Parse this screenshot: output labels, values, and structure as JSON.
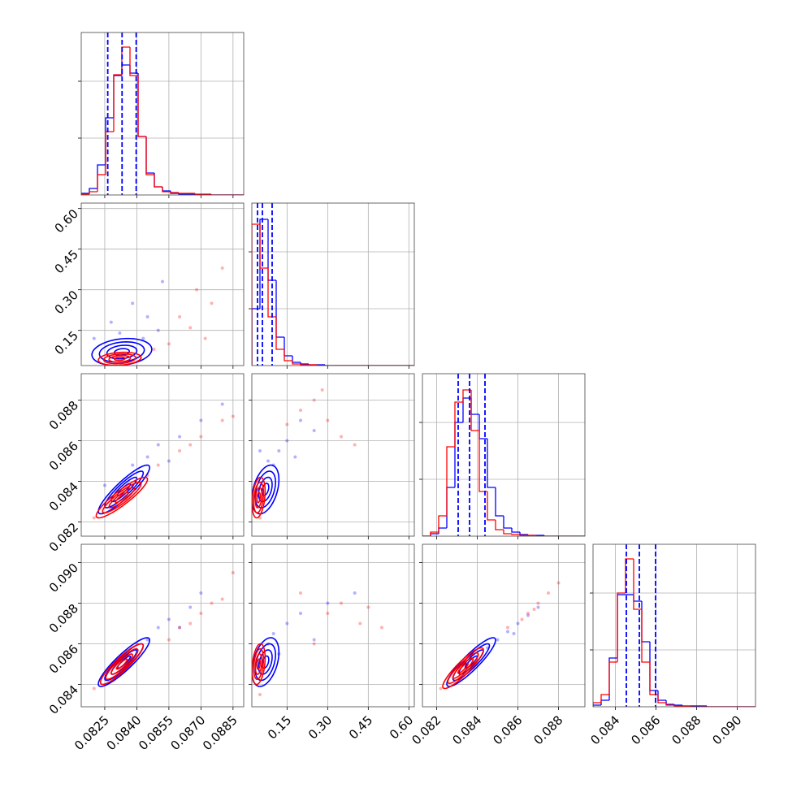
{
  "chart_data": {
    "type": "corner",
    "grid": true,
    "colors": [
      "#0000ff",
      "#ff0000"
    ],
    "contour_levels": [
      0.5,
      1,
      1.5,
      2
    ],
    "params": [
      {
        "lim": [
          0.0814,
          0.089
        ],
        "ticks": [
          0.0825,
          {
            "value": 0.084,
            "label": "0.0840"
          },
          0.0855,
          {
            "value": 0.087,
            "label": "0.0870"
          },
          0.0885
        ]
      },
      {
        "lim": [
          0.02,
          0.62
        ],
        "ticks": [
          0.15,
          {
            "value": 0.3,
            "label": "0.30"
          },
          0.45,
          {
            "value": 0.6,
            "label": "0.60"
          }
        ]
      },
      {
        "lim": [
          0.0813,
          0.0893
        ],
        "ticks": [
          0.082,
          0.084,
          0.086,
          0.088
        ]
      },
      {
        "lim": [
          0.0829,
          0.0909
        ],
        "ticks": [
          0.084,
          0.086,
          0.088,
          {
            "value": 0.09,
            "label": "0.090"
          }
        ]
      }
    ],
    "histograms": [
      {
        "bins": [
          0.0814,
          0.08178,
          0.08216,
          0.08254,
          0.08292,
          0.0833,
          0.08368,
          0.08406,
          0.08444,
          0.08482,
          0.0852,
          0.08558,
          0.08596,
          0.08634,
          0.08672,
          0.0871,
          0.08748,
          0.08786,
          0.08824,
          0.08862,
          0.089
        ],
        "counts": [
          [
            2,
            8,
            37,
            95,
            147,
            160,
            150,
            72,
            27,
            10,
            5,
            2,
            1,
            1,
            0,
            0,
            0,
            0,
            0,
            0
          ],
          [
            1,
            4,
            25,
            78,
            148,
            182,
            147,
            72,
            25,
            10,
            4,
            3,
            2,
            2,
            1,
            1,
            0,
            0,
            0,
            0
          ]
        ],
        "quantiles": [
          0.08264,
          0.08331,
          0.08397
        ],
        "ylim": [
          0,
          200
        ],
        "yticks": [
          70,
          140
        ]
      },
      {
        "bins": [
          0.02,
          0.05,
          0.08,
          0.11,
          0.14,
          0.17,
          0.2,
          0.23,
          0.26,
          0.29,
          0.32,
          0.35,
          0.38,
          0.41,
          0.44,
          0.47,
          0.5,
          0.53,
          0.56,
          0.59,
          0.62
        ],
        "counts": [
          [
            70,
            180,
            105,
            35,
            12,
            4,
            2,
            1,
            1,
            0,
            0,
            0,
            0,
            0,
            0,
            0,
            0,
            0,
            0,
            0
          ],
          [
            174,
            120,
            60,
            20,
            6,
            2,
            1,
            1,
            0,
            0,
            0,
            0,
            0,
            0,
            0,
            0,
            0,
            0,
            0,
            0
          ]
        ],
        "quantiles": [
          0.041,
          0.059,
          0.095
        ],
        "ylim": [
          0,
          200
        ],
        "yticks": [
          70,
          140
        ]
      },
      {
        "bins": [
          0.0813,
          0.0817,
          0.0821,
          0.0825,
          0.0829,
          0.0833,
          0.0837,
          0.0841,
          0.0845,
          0.0849,
          0.0853,
          0.0857,
          0.0861,
          0.0865,
          0.0869,
          0.0873,
          0.0877,
          0.0881,
          0.0885,
          0.0889,
          0.0893
        ],
        "counts": [
          [
            0,
            3,
            10,
            60,
            140,
            170,
            150,
            120,
            60,
            25,
            10,
            5,
            2,
            1,
            1,
            0,
            0,
            0,
            0,
            0
          ],
          [
            0,
            5,
            25,
            110,
            165,
            180,
            130,
            55,
            20,
            8,
            3,
            2,
            1,
            1,
            0,
            0,
            0,
            0,
            0,
            0
          ]
        ],
        "quantiles": [
          0.08306,
          0.08362,
          0.08438
        ],
        "ylim": [
          0,
          200
        ],
        "yticks": [
          70,
          140
        ]
      },
      {
        "bins": [
          0.0829,
          0.0833,
          0.0837,
          0.0841,
          0.0845,
          0.0849,
          0.0853,
          0.0857,
          0.0861,
          0.0865,
          0.0869,
          0.0873,
          0.0877,
          0.0881,
          0.0885,
          0.0889,
          0.0893,
          0.0897,
          0.0901,
          0.0905,
          0.0909
        ],
        "counts": [
          [
            2,
            8,
            60,
            138,
            138,
            130,
            80,
            20,
            8,
            3,
            2,
            1,
            1,
            1,
            0,
            0,
            0,
            0,
            0,
            0
          ],
          [
            5,
            15,
            55,
            140,
            182,
            120,
            55,
            15,
            5,
            2,
            1,
            1,
            0,
            0,
            0,
            0,
            0,
            0,
            0,
            0
          ]
        ],
        "quantiles": [
          0.08454,
          0.08518,
          0.08598
        ],
        "ylim": [
          0,
          200
        ],
        "yticks": [
          70,
          140
        ]
      }
    ],
    "panels": [
      {
        "x": 0,
        "y": 1,
        "points": [
          [
            [
              0.0845,
              0.2
            ],
            [
              0.085,
              0.15
            ],
            [
              0.0838,
              0.25
            ],
            [
              0.0828,
              0.18
            ],
            [
              0.0852,
              0.33
            ],
            [
              0.082,
              0.12
            ],
            [
              0.0843,
              0.12
            ],
            [
              0.0832,
              0.14
            ]
          ],
          [
            [
              0.0868,
              0.3
            ],
            [
              0.0875,
              0.25
            ],
            [
              0.086,
              0.2
            ],
            [
              0.088,
              0.38
            ],
            [
              0.0855,
              0.1
            ],
            [
              0.0865,
              0.16
            ],
            [
              0.0848,
              0.08
            ],
            [
              0.0872,
              0.12
            ]
          ]
        ],
        "contours": [
          {
            "center": [
              0.0833,
              0.07
            ],
            "sd": [
              0.0007,
              0.025
            ],
            "rho": 0.2
          },
          {
            "center": [
              0.0832,
              0.045
            ],
            "sd": [
              0.0005,
              0.012
            ],
            "rho": 0.2
          }
        ]
      },
      {
        "x": 0,
        "y": 2,
        "points": [
          [
            [
              0.085,
              0.0858
            ],
            [
              0.0845,
              0.0852
            ],
            [
              0.086,
              0.0862
            ],
            [
              0.0838,
              0.0848
            ],
            [
              0.087,
              0.087
            ],
            [
              0.088,
              0.0878
            ],
            [
              0.0825,
              0.0838
            ],
            [
              0.0855,
              0.085
            ]
          ],
          [
            [
              0.086,
              0.0855
            ],
            [
              0.087,
              0.0862
            ],
            [
              0.088,
              0.087
            ],
            [
              0.085,
              0.0848
            ],
            [
              0.0845,
              0.0843
            ],
            [
              0.082,
              0.0822
            ],
            [
              0.0885,
              0.0872
            ],
            [
              0.0865,
              0.0858
            ]
          ]
        ],
        "contours": [
          {
            "center": [
              0.0834,
              0.0836
            ],
            "sd": [
              0.0006,
              0.0006
            ],
            "rho": 0.9
          },
          {
            "center": [
              0.0833,
              0.0832
            ],
            "sd": [
              0.0006,
              0.0005
            ],
            "rho": 0.9
          }
        ]
      },
      {
        "x": 1,
        "y": 2,
        "points": [
          [
            [
              0.08,
              0.085
            ],
            [
              0.12,
              0.0855
            ],
            [
              0.15,
              0.086
            ],
            [
              0.05,
              0.0855
            ],
            [
              0.2,
              0.087
            ],
            [
              0.1,
              0.0848
            ],
            [
              0.18,
              0.0852
            ],
            [
              0.25,
              0.0865
            ]
          ],
          [
            [
              0.3,
              0.087
            ],
            [
              0.35,
              0.0862
            ],
            [
              0.25,
              0.088
            ],
            [
              0.2,
              0.0875
            ],
            [
              0.4,
              0.0858
            ],
            [
              0.15,
              0.0868
            ],
            [
              0.28,
              0.0885
            ],
            [
              0.05,
              0.0822
            ]
          ]
        ],
        "contours": [
          {
            "center": [
              0.07,
              0.0836
            ],
            "sd": [
              0.025,
              0.0006
            ],
            "rho": 0.4
          },
          {
            "center": [
              0.045,
              0.0832
            ],
            "sd": [
              0.012,
              0.0005
            ],
            "rho": 0.3
          }
        ]
      },
      {
        "x": 0,
        "y": 3,
        "points": [
          [
            [
              0.085,
              0.0868
            ],
            [
              0.0855,
              0.0872
            ],
            [
              0.0845,
              0.0862
            ],
            [
              0.0865,
              0.0878
            ],
            [
              0.087,
              0.0885
            ],
            [
              0.0835,
              0.0855
            ],
            [
              0.084,
              0.086
            ],
            [
              0.086,
              0.0868
            ]
          ],
          [
            [
              0.086,
              0.0868
            ],
            [
              0.087,
              0.0875
            ],
            [
              0.088,
              0.0882
            ],
            [
              0.0875,
              0.088
            ],
            [
              0.0885,
              0.0895
            ],
            [
              0.0855,
              0.0862
            ],
            [
              0.082,
              0.0838
            ],
            [
              0.0865,
              0.087
            ]
          ]
        ],
        "contours": [
          {
            "center": [
              0.0834,
              0.0851
            ],
            "sd": [
              0.0006,
              0.0006
            ],
            "rho": 0.9
          },
          {
            "center": [
              0.0833,
              0.085
            ],
            "sd": [
              0.0005,
              0.0005
            ],
            "rho": 0.9
          }
        ]
      },
      {
        "x": 1,
        "y": 3,
        "points": [
          [
            [
              0.1,
              0.0865
            ],
            [
              0.15,
              0.087
            ],
            [
              0.2,
              0.0875
            ],
            [
              0.08,
              0.086
            ],
            [
              0.25,
              0.0862
            ],
            [
              0.3,
              0.088
            ],
            [
              0.12,
              0.0855
            ],
            [
              0.4,
              0.0885
            ]
          ],
          [
            [
              0.35,
              0.088
            ],
            [
              0.3,
              0.0875
            ],
            [
              0.42,
              0.087
            ],
            [
              0.2,
              0.0885
            ],
            [
              0.5,
              0.0868
            ],
            [
              0.25,
              0.086
            ],
            [
              0.45,
              0.0878
            ],
            [
              0.05,
              0.0835
            ]
          ]
        ],
        "contours": [
          {
            "center": [
              0.07,
              0.0851
            ],
            "sd": [
              0.025,
              0.0006
            ],
            "rho": 0.4
          },
          {
            "center": [
              0.045,
              0.085
            ],
            "sd": [
              0.012,
              0.0005
            ],
            "rho": 0.3
          }
        ]
      },
      {
        "x": 2,
        "y": 3,
        "points": [
          [
            [
              0.085,
              0.0862
            ],
            [
              0.0855,
              0.0866
            ],
            [
              0.086,
              0.087
            ],
            [
              0.0845,
              0.0858
            ],
            [
              0.0865,
              0.0874
            ],
            [
              0.087,
              0.0878
            ],
            [
              0.084,
              0.0852
            ],
            [
              0.0858,
              0.0865
            ]
          ],
          [
            [
              0.0865,
              0.0875
            ],
            [
              0.087,
              0.088
            ],
            [
              0.0875,
              0.0885
            ],
            [
              0.088,
              0.089
            ],
            [
              0.0862,
              0.0872
            ],
            [
              0.0855,
              0.0868
            ],
            [
              0.0822,
              0.0838
            ],
            [
              0.0868,
              0.0877
            ]
          ]
        ],
        "contours": [
          {
            "center": [
              0.0837,
              0.0851
            ],
            "sd": [
              0.0006,
              0.0006
            ],
            "rho": 0.9
          },
          {
            "center": [
              0.0833,
              0.0848
            ],
            "sd": [
              0.0005,
              0.0005
            ],
            "rho": 0.9
          }
        ]
      }
    ]
  }
}
